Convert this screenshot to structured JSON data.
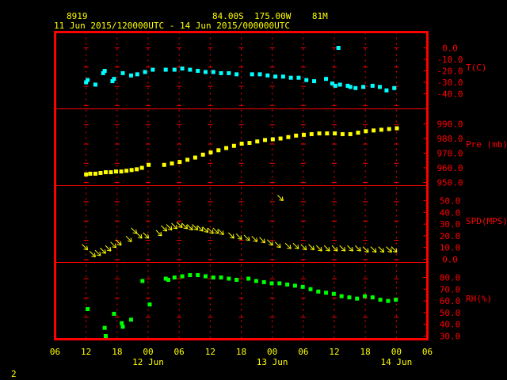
{
  "header": {
    "station_id": "8919",
    "location": "84.00S  175.00W    81M",
    "period": "11 Jun 2015/120000UTC - 14 Jun 2015/000000UTC"
  },
  "footer": {
    "page_number": "2"
  },
  "colors": {
    "frame": "#ff0000",
    "grid": "#ff0000",
    "text": "#ffff00",
    "temperature": "#00ffff",
    "pressure": "#ffff00",
    "wind": "#ffff00",
    "humidity": "#00ff00"
  },
  "chart_data": {
    "type": "scatter",
    "x_axis": {
      "range_hours": [
        -6,
        66
      ],
      "tick_labels": [
        "06",
        "12",
        "18",
        "00",
        "06",
        "12",
        "18",
        "00",
        "06",
        "12",
        "18",
        "00",
        "06"
      ],
      "date_labels": [
        {
          "label": "12 Jun",
          "hour": 12
        },
        {
          "label": "13 Jun",
          "hour": 36
        },
        {
          "label": "14 Jun",
          "hour": 60
        }
      ]
    },
    "panels": [
      {
        "key": "T",
        "label": "T(C)",
        "range": [
          -40,
          0
        ],
        "ticks": [
          "0.0",
          "-10.0",
          "-20.0",
          "-30.0",
          "-40.0"
        ],
        "series": [
          [
            0,
            -30
          ],
          [
            0.3,
            -28
          ],
          [
            1.8,
            -32
          ],
          [
            3.3,
            -22
          ],
          [
            3.6,
            -20
          ],
          [
            5.1,
            -29
          ],
          [
            5.4,
            -27
          ],
          [
            7.1,
            -22
          ],
          [
            8.7,
            -24
          ],
          [
            9.9,
            -23
          ],
          [
            11.4,
            -21
          ],
          [
            12.9,
            -19
          ],
          [
            15.4,
            -19
          ],
          [
            17.1,
            -19
          ],
          [
            18.6,
            -18
          ],
          [
            20.1,
            -19
          ],
          [
            21.6,
            -20
          ],
          [
            23.1,
            -21
          ],
          [
            24.6,
            -21
          ],
          [
            26.1,
            -22
          ],
          [
            27.6,
            -22
          ],
          [
            29.1,
            -23
          ],
          [
            32.1,
            -23
          ],
          [
            33.6,
            -23
          ],
          [
            35.1,
            -24
          ],
          [
            36.6,
            -25
          ],
          [
            38.1,
            -25
          ],
          [
            39.6,
            -26
          ],
          [
            41.1,
            -26
          ],
          [
            42.6,
            -28
          ],
          [
            44.1,
            -29
          ],
          [
            46.4,
            -27
          ],
          [
            47.6,
            -31
          ],
          [
            48.2,
            -33
          ],
          [
            49.1,
            -32
          ],
          [
            50.6,
            -33
          ],
          [
            51.1,
            -34
          ],
          [
            52.1,
            -35
          ],
          [
            53.6,
            -34
          ],
          [
            55.4,
            -33
          ],
          [
            56.8,
            -34
          ],
          [
            58.1,
            -37
          ],
          [
            59.6,
            -35
          ],
          [
            48.8,
            0
          ]
        ]
      },
      {
        "key": "Pre",
        "label": "Pre (mb)",
        "range": [
          950,
          1000
        ],
        "ticks": [
          "990.0",
          "980.0",
          "970.0",
          "960.0",
          "950.0"
        ],
        "series": [
          [
            0,
            955.5
          ],
          [
            0.8,
            956
          ],
          [
            1.8,
            956
          ],
          [
            2.8,
            956.5
          ],
          [
            3.8,
            957
          ],
          [
            4.8,
            957
          ],
          [
            5.8,
            957.5
          ],
          [
            6.8,
            957.5
          ],
          [
            7.8,
            958
          ],
          [
            8.8,
            958.5
          ],
          [
            9.8,
            959
          ],
          [
            10.8,
            960
          ],
          [
            12.1,
            962
          ],
          [
            15.1,
            962
          ],
          [
            16.6,
            963
          ],
          [
            18.1,
            964
          ],
          [
            19.6,
            965.5
          ],
          [
            21.1,
            967
          ],
          [
            22.6,
            969
          ],
          [
            24.1,
            970.5
          ],
          [
            25.6,
            972
          ],
          [
            27.1,
            973.5
          ],
          [
            28.6,
            975
          ],
          [
            30.1,
            976.5
          ],
          [
            31.6,
            977
          ],
          [
            33.1,
            978
          ],
          [
            34.6,
            979
          ],
          [
            36.1,
            979.5
          ],
          [
            37.6,
            980
          ],
          [
            39.1,
            981
          ],
          [
            40.6,
            982
          ],
          [
            42.1,
            982.5
          ],
          [
            43.6,
            983
          ],
          [
            45.1,
            983.5
          ],
          [
            46.6,
            983.5
          ],
          [
            48.1,
            983.5
          ],
          [
            49.6,
            983
          ],
          [
            51.1,
            983
          ],
          [
            52.6,
            984
          ],
          [
            54.1,
            985
          ],
          [
            55.6,
            985.5
          ],
          [
            57.1,
            986
          ],
          [
            58.6,
            986.5
          ],
          [
            60.1,
            987
          ]
        ]
      },
      {
        "key": "SPD",
        "label": "SPD(MPS)",
        "range": [
          0,
          60
        ],
        "ticks": [
          "50.0",
          "40.0",
          "30.0",
          "20.0",
          "10.0",
          "0.0"
        ],
        "series": [
          [
            0.3,
            8
          ],
          [
            1.8,
            2
          ],
          [
            2.8,
            3
          ],
          [
            3.8,
            5
          ],
          [
            4.8,
            7
          ],
          [
            5.8,
            10
          ],
          [
            6.8,
            12
          ],
          [
            8.8,
            15
          ],
          [
            9.8,
            22
          ],
          [
            10.8,
            18
          ],
          [
            12.1,
            18
          ],
          [
            14.6,
            20
          ],
          [
            15.6,
            24
          ],
          [
            16.6,
            25
          ],
          [
            17.6,
            26
          ],
          [
            18.6,
            27
          ],
          [
            19.6,
            26
          ],
          [
            20.6,
            25
          ],
          [
            21.6,
            25
          ],
          [
            22.6,
            24
          ],
          [
            23.6,
            23
          ],
          [
            24.6,
            22
          ],
          [
            25.6,
            22
          ],
          [
            26.6,
            21
          ],
          [
            28.6,
            18
          ],
          [
            30.1,
            17
          ],
          [
            31.6,
            16
          ],
          [
            33.1,
            15
          ],
          [
            34.6,
            14
          ],
          [
            36.1,
            12
          ],
          [
            37.6,
            10
          ],
          [
            38.1,
            50
          ],
          [
            39.6,
            9
          ],
          [
            41.1,
            9
          ],
          [
            42.6,
            8
          ],
          [
            44.1,
            8
          ],
          [
            45.6,
            7
          ],
          [
            47.1,
            7
          ],
          [
            48.6,
            7
          ],
          [
            50.1,
            7
          ],
          [
            51.6,
            7
          ],
          [
            53.1,
            7
          ],
          [
            54.6,
            6
          ],
          [
            56.1,
            6
          ],
          [
            57.6,
            6
          ],
          [
            59.1,
            6
          ],
          [
            60.1,
            6
          ]
        ]
      },
      {
        "key": "RH",
        "label": "RH(%)",
        "range": [
          30,
          90
        ],
        "ticks": [
          "80.0",
          "70.0",
          "60.0",
          "50.0",
          "40.0",
          "30.0"
        ],
        "series": [
          [
            0.3,
            53
          ],
          [
            3.6,
            37
          ],
          [
            3.8,
            30
          ],
          [
            5.4,
            49
          ],
          [
            6.9,
            41
          ],
          [
            7.1,
            38
          ],
          [
            8.7,
            44
          ],
          [
            10.9,
            77
          ],
          [
            12.3,
            57
          ],
          [
            15.4,
            79
          ],
          [
            15.9,
            78
          ],
          [
            17.1,
            80
          ],
          [
            18.6,
            81
          ],
          [
            20.1,
            82
          ],
          [
            21.6,
            82
          ],
          [
            23.1,
            81
          ],
          [
            24.6,
            80
          ],
          [
            26.1,
            80
          ],
          [
            27.6,
            79
          ],
          [
            29.1,
            78
          ],
          [
            31.4,
            79
          ],
          [
            32.9,
            77
          ],
          [
            34.4,
            76
          ],
          [
            35.9,
            75
          ],
          [
            37.4,
            75
          ],
          [
            38.9,
            74
          ],
          [
            40.4,
            73
          ],
          [
            41.9,
            72
          ],
          [
            43.4,
            70
          ],
          [
            44.9,
            68
          ],
          [
            46.4,
            67
          ],
          [
            47.9,
            66
          ],
          [
            49.4,
            64
          ],
          [
            50.9,
            63
          ],
          [
            52.4,
            62
          ],
          [
            53.9,
            64
          ],
          [
            55.4,
            63
          ],
          [
            56.9,
            61
          ],
          [
            58.4,
            60
          ],
          [
            59.9,
            61
          ]
        ]
      }
    ]
  }
}
